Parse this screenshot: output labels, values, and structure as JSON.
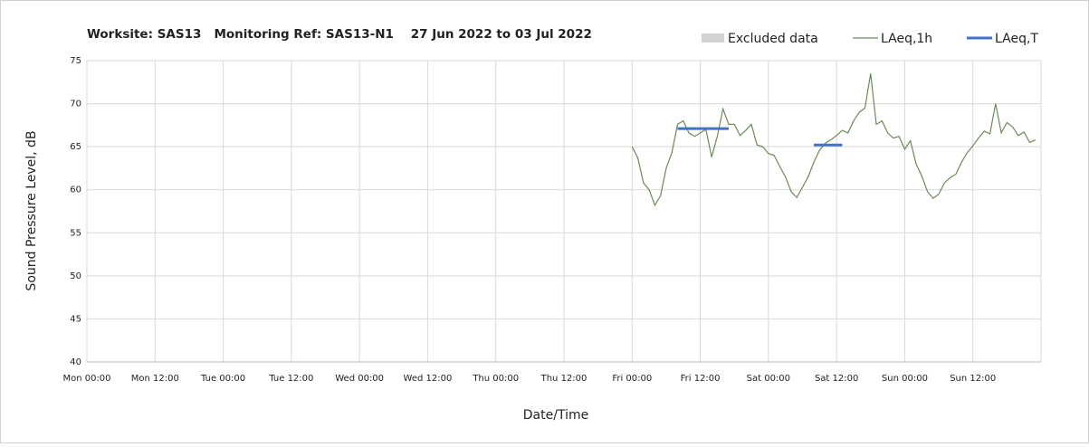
{
  "chart_data": {
    "type": "line",
    "title": "Worksite: SAS13   Monitoring Ref: SAS13-N1    27 Jun 2022 to 03 Jul 2022",
    "xlabel": "Date/Time",
    "ylabel": "Sound Pressure Level, dB",
    "xlim": [
      0,
      168
    ],
    "ylim": [
      40,
      75
    ],
    "yticks": [
      40,
      45,
      50,
      55,
      60,
      65,
      70,
      75
    ],
    "xticks": [
      {
        "value": 0,
        "label": "Mon 00:00"
      },
      {
        "value": 12,
        "label": "Mon 12:00"
      },
      {
        "value": 24,
        "label": "Tue 00:00"
      },
      {
        "value": 36,
        "label": "Tue 12:00"
      },
      {
        "value": 48,
        "label": "Wed 00:00"
      },
      {
        "value": 60,
        "label": "Wed 12:00"
      },
      {
        "value": 72,
        "label": "Thu 00:00"
      },
      {
        "value": 84,
        "label": "Thu 12:00"
      },
      {
        "value": 96,
        "label": "Fri 00:00"
      },
      {
        "value": 108,
        "label": "Fri 12:00"
      },
      {
        "value": 120,
        "label": "Sat 00:00"
      },
      {
        "value": 132,
        "label": "Sat 12:00"
      },
      {
        "value": 144,
        "label": "Sun 00:00"
      },
      {
        "value": 156,
        "label": "Sun 12:00"
      }
    ],
    "grid": true,
    "series": [
      {
        "name": "Excluded data",
        "color": "#d3d3d3",
        "style": "band",
        "x": [],
        "values": []
      },
      {
        "name": "LAeq,1h",
        "color": "#6b8a5a",
        "style": "line",
        "x": [
          96,
          97,
          98,
          99,
          100,
          101,
          102,
          103,
          104,
          105,
          106,
          107,
          108,
          109,
          110,
          111,
          112,
          113,
          114,
          115,
          116,
          117,
          118,
          119,
          120,
          121,
          122,
          123,
          124,
          125,
          126,
          127,
          128,
          129,
          130,
          131,
          132,
          133,
          134,
          135,
          136,
          137,
          138,
          139,
          140,
          141,
          142,
          143,
          144,
          145,
          146,
          147,
          148,
          149,
          150,
          151,
          152,
          153,
          154,
          155,
          156,
          157,
          158,
          159,
          160,
          161,
          162,
          163,
          164,
          165,
          166,
          167
        ],
        "values": [
          65.0,
          63.7,
          60.8,
          60.0,
          58.2,
          59.3,
          62.5,
          64.3,
          67.6,
          68.0,
          66.6,
          66.2,
          66.6,
          67.0,
          63.8,
          66.2,
          69.4,
          67.6,
          67.6,
          66.3,
          66.9,
          67.6,
          65.2,
          65.0,
          64.2,
          64.0,
          62.7,
          61.5,
          59.8,
          59.1,
          60.3,
          61.5,
          63.2,
          64.6,
          65.4,
          65.8,
          66.3,
          66.9,
          66.6,
          68.0,
          69.0,
          69.5,
          73.5,
          67.6,
          68.0,
          66.6,
          66.0,
          66.2,
          64.7,
          65.7,
          63.0,
          61.6,
          59.8,
          59.0,
          59.5,
          60.8,
          61.4,
          61.8,
          63.2,
          64.3,
          65.1,
          66.0,
          66.8,
          66.5,
          70.0,
          66.6,
          67.8,
          67.3,
          66.3,
          66.7,
          65.5,
          65.8
        ]
      },
      {
        "name": "LAeq,T",
        "color": "#4472c4",
        "style": "thick",
        "x": [
          104,
          113,
          null,
          128,
          133
        ],
        "values": [
          67.1,
          67.1,
          null,
          65.2,
          65.2
        ]
      }
    ]
  }
}
